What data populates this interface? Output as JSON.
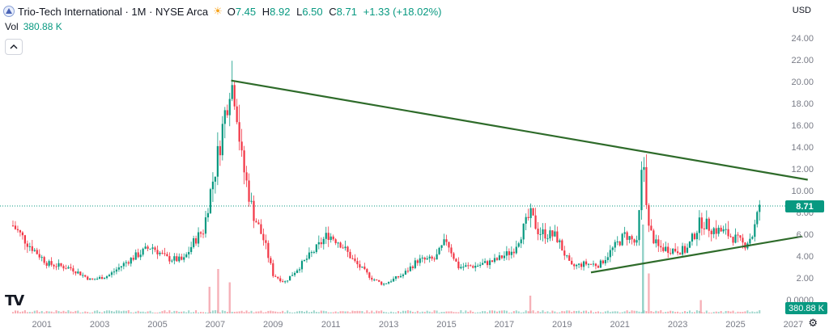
{
  "header": {
    "title": "Trio-Tech International · 1M · NYSE Arca",
    "open_label": "O",
    "open": "7.45",
    "high_label": "H",
    "high": "8.92",
    "low_label": "L",
    "low": "6.50",
    "close_label": "C",
    "close": "8.71",
    "change": "+1.33 (+18.02%)"
  },
  "volume": {
    "label": "Vol",
    "value": "380.88 K"
  },
  "currency": "USD",
  "colors": {
    "up": "#089981",
    "down": "#f23645",
    "trend": "#2e6b2a",
    "price_tag": "#089981"
  },
  "chart_data": {
    "type": "candlestick",
    "x_ticks": [
      "2001",
      "2003",
      "2005",
      "2007",
      "2009",
      "2011",
      "2013",
      "2015",
      "2017",
      "2019",
      "2021",
      "2023",
      "2025",
      "2027"
    ],
    "y_ticks": [
      "24.00",
      "22.00",
      "20.00",
      "18.00",
      "16.00",
      "14.00",
      "12.00",
      "10.00",
      "8.00",
      "6.00",
      "4.00",
      "2.00",
      "0.0000"
    ],
    "y_range": [
      0,
      25
    ],
    "last_price": "8.71",
    "last_volume": "380.88 K",
    "price_path": [
      [
        2000.0,
        6.8
      ],
      [
        2000.5,
        5.2
      ],
      [
        2001.2,
        3.3
      ],
      [
        2002.0,
        2.9
      ],
      [
        2002.7,
        1.8
      ],
      [
        2003.3,
        2.2
      ],
      [
        2004.0,
        3.6
      ],
      [
        2004.8,
        4.9
      ],
      [
        2005.3,
        3.8
      ],
      [
        2005.9,
        3.6
      ],
      [
        2006.3,
        5.5
      ],
      [
        2006.6,
        6.4
      ],
      [
        2006.8,
        9.5
      ],
      [
        2007.0,
        12.0
      ],
      [
        2007.3,
        16.5
      ],
      [
        2007.5,
        20.0
      ],
      [
        2007.7,
        19.0
      ],
      [
        2007.9,
        13.0
      ],
      [
        2008.3,
        8.0
      ],
      [
        2008.7,
        5.3
      ],
      [
        2009.0,
        2.3
      ],
      [
        2009.4,
        1.6
      ],
      [
        2009.9,
        3.0
      ],
      [
        2010.5,
        4.7
      ],
      [
        2010.9,
        6.0
      ],
      [
        2011.3,
        5.3
      ],
      [
        2011.8,
        3.5
      ],
      [
        2012.4,
        2.0
      ],
      [
        2012.8,
        1.4
      ],
      [
        2013.5,
        2.3
      ],
      [
        2014.0,
        3.6
      ],
      [
        2014.6,
        3.7
      ],
      [
        2015.0,
        5.5
      ],
      [
        2015.4,
        3.0
      ],
      [
        2016.0,
        3.1
      ],
      [
        2016.7,
        3.6
      ],
      [
        2017.3,
        4.5
      ],
      [
        2017.9,
        7.8
      ],
      [
        2018.2,
        6.2
      ],
      [
        2018.8,
        5.8
      ],
      [
        2019.3,
        3.0
      ],
      [
        2019.8,
        3.3
      ],
      [
        2020.3,
        3.2
      ],
      [
        2020.7,
        4.5
      ],
      [
        2021.2,
        6.0
      ],
      [
        2021.6,
        5.0
      ],
      [
        2021.8,
        13.4
      ],
      [
        2022.0,
        6.5
      ],
      [
        2022.3,
        4.8
      ],
      [
        2022.8,
        4.6
      ],
      [
        2023.3,
        4.5
      ],
      [
        2023.8,
        7.2
      ],
      [
        2024.2,
        6.5
      ],
      [
        2024.6,
        6.2
      ],
      [
        2025.0,
        5.6
      ],
      [
        2025.3,
        5.0
      ],
      [
        2025.6,
        6.0
      ],
      [
        2025.85,
        8.71
      ]
    ],
    "trend_lines": [
      {
        "from": [
          2007.55,
          20.1
        ],
        "to": [
          2027.5,
          11.0
        ]
      },
      {
        "from": [
          2020.0,
          2.5
        ],
        "to": [
          2027.3,
          5.8
        ]
      }
    ],
    "volume_spikes": [
      {
        "x": 2006.8,
        "v": 0.3
      },
      {
        "x": 2007.1,
        "v": 0.5
      },
      {
        "x": 2007.5,
        "v": 0.35
      },
      {
        "x": 2017.9,
        "v": 0.2
      },
      {
        "x": 2021.8,
        "v": 1.0
      },
      {
        "x": 2022.0,
        "v": 0.45
      },
      {
        "x": 2023.8,
        "v": 0.15
      }
    ]
  }
}
